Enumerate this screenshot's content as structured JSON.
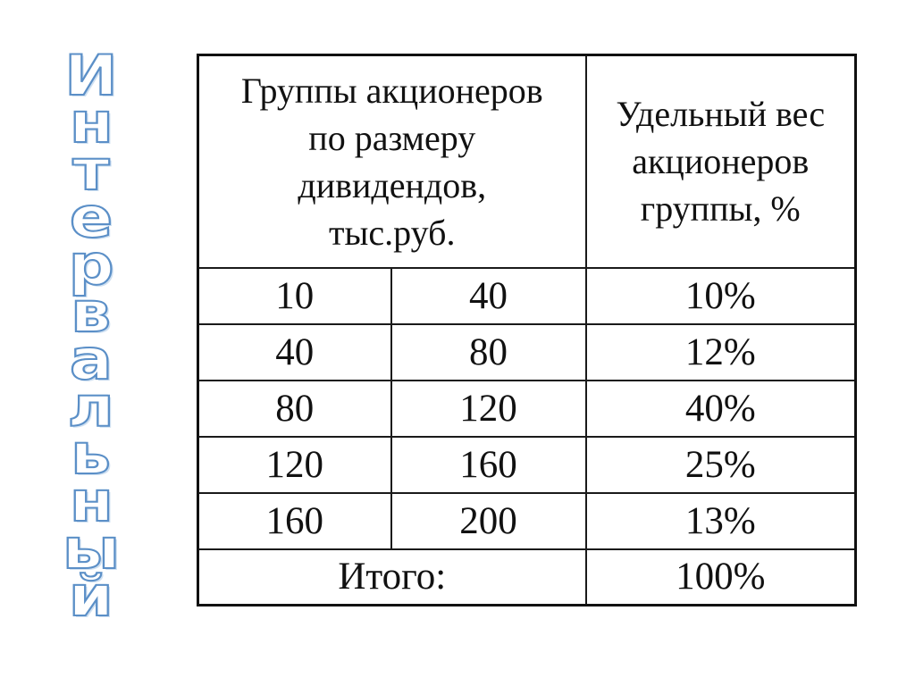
{
  "side_word": {
    "letters": [
      "И",
      "н",
      "т",
      "е",
      "р",
      "в",
      "а",
      "л",
      "ь",
      "н",
      "ы",
      "й"
    ]
  },
  "table": {
    "header_group": "Группы акционеров по размеру дивидендов, тыс.руб.",
    "header_group_lines": [
      "Группы акционеров",
      "по размеру",
      "дивидендов,",
      "тыс.руб."
    ],
    "header_share_lines": [
      "Удельный вес",
      "акционеров",
      "группы, %"
    ],
    "rows": [
      {
        "from": "10",
        "to": "40",
        "share": "10%"
      },
      {
        "from": "40",
        "to": "80",
        "share": "12%"
      },
      {
        "from": "80",
        "to": "120",
        "share": "40%"
      },
      {
        "from": "120",
        "to": "160",
        "share": "25%"
      },
      {
        "from": "160",
        "to": "200",
        "share": "13%"
      }
    ],
    "total_label": "Итого:",
    "total_share": "100%"
  },
  "colors": {
    "side_word_outline": "#5b8fc7",
    "side_word_fill": "#ffffff",
    "table_border": "#1a1a1a",
    "text": "#111111"
  }
}
